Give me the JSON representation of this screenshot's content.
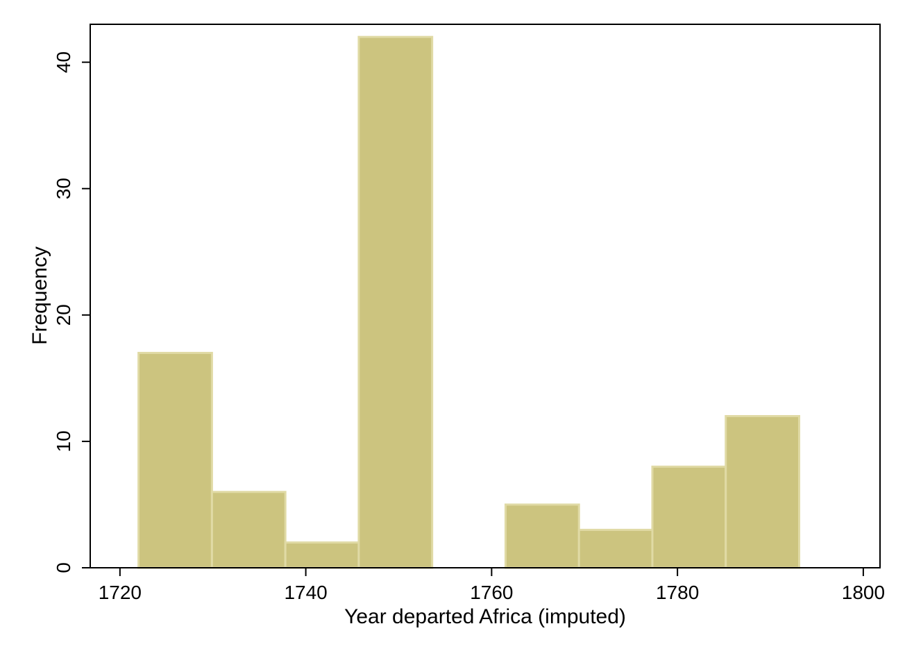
{
  "chart_data": {
    "type": "bar",
    "subtype": "histogram",
    "xlabel": "Year departed Africa (imputed)",
    "ylabel": "Frequency",
    "xlim": [
      1716.8,
      1801.8
    ],
    "ylim": [
      0,
      43
    ],
    "xticks": [
      1720,
      1740,
      1760,
      1780,
      1800
    ],
    "yticks": [
      0,
      10,
      20,
      30,
      40
    ],
    "bin_width": 7.9,
    "bins": [
      {
        "start": 1722.0,
        "end": 1729.9,
        "value": 17
      },
      {
        "start": 1729.9,
        "end": 1737.8,
        "value": 6
      },
      {
        "start": 1737.8,
        "end": 1745.7,
        "value": 2
      },
      {
        "start": 1745.7,
        "end": 1753.6,
        "value": 42
      },
      {
        "start": 1753.6,
        "end": 1761.5,
        "value": 0
      },
      {
        "start": 1761.5,
        "end": 1769.4,
        "value": 5
      },
      {
        "start": 1769.4,
        "end": 1777.3,
        "value": 3
      },
      {
        "start": 1777.3,
        "end": 1785.2,
        "value": 8
      },
      {
        "start": 1785.2,
        "end": 1793.1,
        "value": 12
      }
    ],
    "bar_fill": "#ccc47f",
    "bar_stroke": "#e0daa5",
    "grid": false,
    "legend": "none"
  }
}
